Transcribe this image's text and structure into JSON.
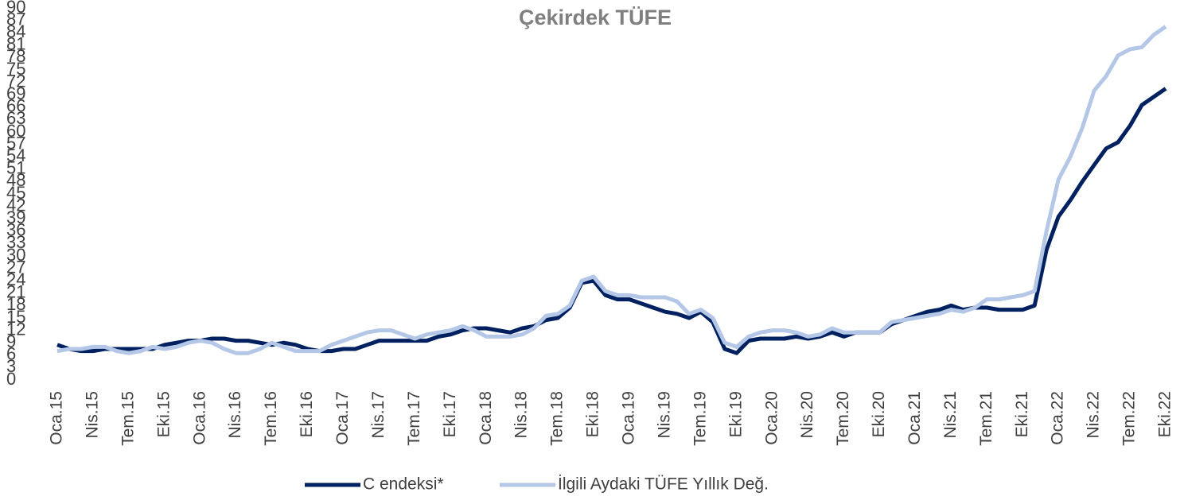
{
  "chart_data": {
    "type": "line",
    "title": "Çekirdek TÜFE",
    "categories": [
      "Oca.15",
      null,
      null,
      "Nis.15",
      null,
      null,
      "Tem.15",
      null,
      null,
      "Eki.15",
      null,
      null,
      "Oca.16",
      null,
      null,
      "Nis.16",
      null,
      null,
      "Tem.16",
      null,
      null,
      "Eki.16",
      null,
      null,
      "Oca.17",
      null,
      null,
      "Nis.17",
      null,
      null,
      "Tem.17",
      null,
      null,
      "Eki.17",
      null,
      null,
      "Oca.18",
      null,
      null,
      "Nis.18",
      null,
      null,
      "Tem.18",
      null,
      null,
      "Eki.18",
      null,
      null,
      "Oca.19",
      null,
      null,
      "Nis.19",
      null,
      null,
      "Tem.19",
      null,
      null,
      "Eki.19",
      null,
      null,
      "Oca.20",
      null,
      null,
      "Nis.20",
      null,
      null,
      "Tem.20",
      null,
      null,
      "Eki.20",
      null,
      null,
      "Oca.21",
      null,
      null,
      "Nis.21",
      null,
      null,
      "Tem.21",
      null,
      null,
      "Eki.21",
      null,
      null,
      "Oca.22",
      null,
      null,
      "Nis.22",
      null,
      null,
      "Tem.22",
      null,
      null,
      "Eki.22"
    ],
    "series": [
      {
        "name": "C endeksi*",
        "color": "#002060",
        "values": [
          8.5,
          7.5,
          7,
          7,
          7.5,
          7.5,
          7.5,
          7.5,
          7.5,
          8.5,
          9,
          9.5,
          9.5,
          10,
          10,
          9.5,
          9.5,
          9,
          8.5,
          9,
          8.5,
          7.5,
          7,
          7,
          7.5,
          7.5,
          8.5,
          9.5,
          9.5,
          9.5,
          9.5,
          9.5,
          10.5,
          11,
          12,
          12.5,
          12.5,
          12,
          11.5,
          12.5,
          13,
          14.5,
          15,
          17.5,
          23.5,
          24,
          20.5,
          19.5,
          19.5,
          18.5,
          17.5,
          16.5,
          16,
          15,
          16.5,
          14,
          7.5,
          6.5,
          9.5,
          10,
          10,
          10,
          10.5,
          10,
          10.5,
          11.5,
          10.5,
          11.5,
          11.5,
          11.5,
          13.5,
          14.5,
          15.5,
          16.5,
          17,
          18,
          17,
          17.5,
          17.5,
          17,
          17,
          17,
          18,
          31.5,
          39.5,
          43.5,
          48,
          52,
          56,
          57.5,
          61.5,
          66.5,
          68.5,
          70.5
        ]
      },
      {
        "name": "İlgili Aydaki TÜFE Yıllık Değ.",
        "color": "#b4c7e7",
        "values": [
          7,
          7.5,
          7.5,
          8,
          8,
          7,
          6.5,
          7,
          8,
          7.5,
          8,
          9,
          9.5,
          9,
          7.5,
          6.5,
          6.5,
          7.5,
          9,
          8,
          7,
          7,
          7,
          8.5,
          9.5,
          10.5,
          11.5,
          12,
          12,
          11,
          10,
          11,
          11.5,
          12,
          13,
          12,
          10.5,
          10.5,
          10.5,
          11,
          12.5,
          15.5,
          16,
          18,
          24,
          25,
          21.5,
          20.5,
          20.5,
          20,
          20,
          20,
          19,
          16,
          17,
          15,
          9,
          8,
          10.5,
          11.5,
          12,
          12,
          11.5,
          10.5,
          11,
          12.5,
          11.5,
          11.5,
          11.5,
          11.5,
          14,
          14.5,
          15,
          15.5,
          16,
          17,
          16.5,
          17.5,
          19.5,
          19.5,
          20,
          20.5,
          21.5,
          36,
          48.5,
          54,
          61,
          70,
          73.5,
          78.5,
          80,
          80.5,
          83.5,
          85.5
        ]
      }
    ],
    "ylim": [
      0,
      90
    ],
    "yticks": [
      0,
      3,
      6,
      9,
      12,
      15,
      18,
      21,
      24,
      27,
      30,
      33,
      36,
      39,
      42,
      45,
      48,
      51,
      54,
      57,
      60,
      63,
      66,
      69,
      72,
      75,
      78,
      81,
      84,
      87,
      90
    ],
    "grid": false,
    "legend": "bottom"
  }
}
